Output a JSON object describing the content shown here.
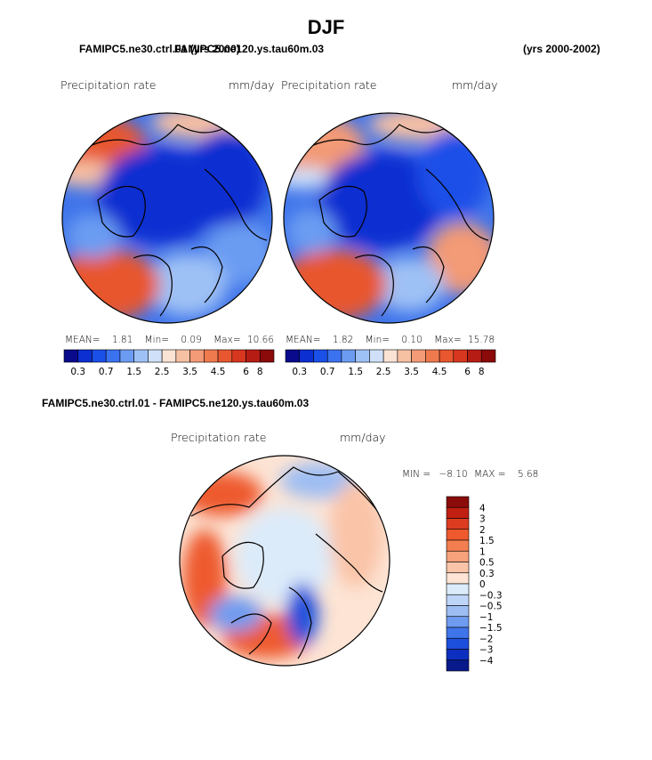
{
  "header": {
    "title": "DJF",
    "left_case_label": "FAMIPC5.ne30.ctrl.01 (yrs 2000)",
    "right_case_label": "FAMIPC5.ne120.ys.tau60m.03",
    "right_years_label": "(yrs 2000-2002)"
  },
  "chart_data": [
    {
      "type": "heatmap",
      "title": "Precipitation rate",
      "units": "mm/day",
      "case": "FAMIPC5.ne30.ctrl.01",
      "projection": "north polar stereographic",
      "stats": {
        "mean_label": "MEAN=",
        "mean": "1.81",
        "min_label": "Min=",
        "min": "0.09",
        "max_label": "Max=",
        "max": "10.66"
      },
      "colorbar": {
        "levels": [
          "0.3",
          "0.7",
          "1.5",
          "2.5",
          "3.5",
          "4.5",
          "6",
          "8"
        ],
        "colors": [
          "#0a0a8c",
          "#0b2fd1",
          "#1a4fe8",
          "#3b72f0",
          "#6b9cf2",
          "#9ec1f5",
          "#cfe0f8",
          "#fbe3d4",
          "#f6c0a3",
          "#f39a76",
          "#ef7a4e",
          "#e8572f",
          "#d8371f",
          "#b71c14",
          "#8b0a0a"
        ]
      }
    },
    {
      "type": "heatmap",
      "title": "Precipitation rate",
      "units": "mm/day",
      "case": "FAMIPC5.ne120.ys.tau60m.03",
      "projection": "north polar stereographic",
      "stats": {
        "mean_label": "MEAN=",
        "mean": "1.82",
        "min_label": "Min=",
        "min": "0.10",
        "max_label": "Max=",
        "max": "15.78"
      },
      "colorbar": {
        "levels": [
          "0.3",
          "0.7",
          "1.5",
          "2.5",
          "3.5",
          "4.5",
          "6",
          "8"
        ],
        "colors": [
          "#0a0a8c",
          "#0b2fd1",
          "#1a4fe8",
          "#3b72f0",
          "#6b9cf2",
          "#9ec1f5",
          "#cfe0f8",
          "#fbe3d4",
          "#f6c0a3",
          "#f39a76",
          "#ef7a4e",
          "#e8572f",
          "#d8371f",
          "#b71c14",
          "#8b0a0a"
        ]
      }
    },
    {
      "type": "heatmap",
      "title": "Precipitation rate",
      "units": "mm/day",
      "case": "FAMIPC5.ne30.ctrl.01 - FAMIPC5.ne120.ys.tau60m.03",
      "projection": "north polar stereographic",
      "stats": {
        "min_label": "MIN =",
        "min": "−8.10",
        "max_label": "MAX =",
        "max": "5.68"
      },
      "colorbar": {
        "levels": [
          "4",
          "3",
          "2",
          "1.5",
          "1",
          "0.5",
          "0.3",
          "0",
          "−0.3",
          "−0.5",
          "−1",
          "−1.5",
          "−2",
          "−3",
          "−4"
        ],
        "colors": [
          "#8b0a0a",
          "#c01f12",
          "#dd3c20",
          "#ee5a2e",
          "#f37f50",
          "#f7a27a",
          "#fac4a8",
          "#fde4d4",
          "#dcebfa",
          "#bfd5f7",
          "#9dbdf3",
          "#6f9bf0",
          "#3f74ea",
          "#1c4fdc",
          "#0c2fc0",
          "#081a8a"
        ]
      }
    }
  ],
  "diff_panel": {
    "title": "FAMIPC5.ne30.ctrl.01 - FAMIPC5.ne120.ys.tau60m.03"
  }
}
